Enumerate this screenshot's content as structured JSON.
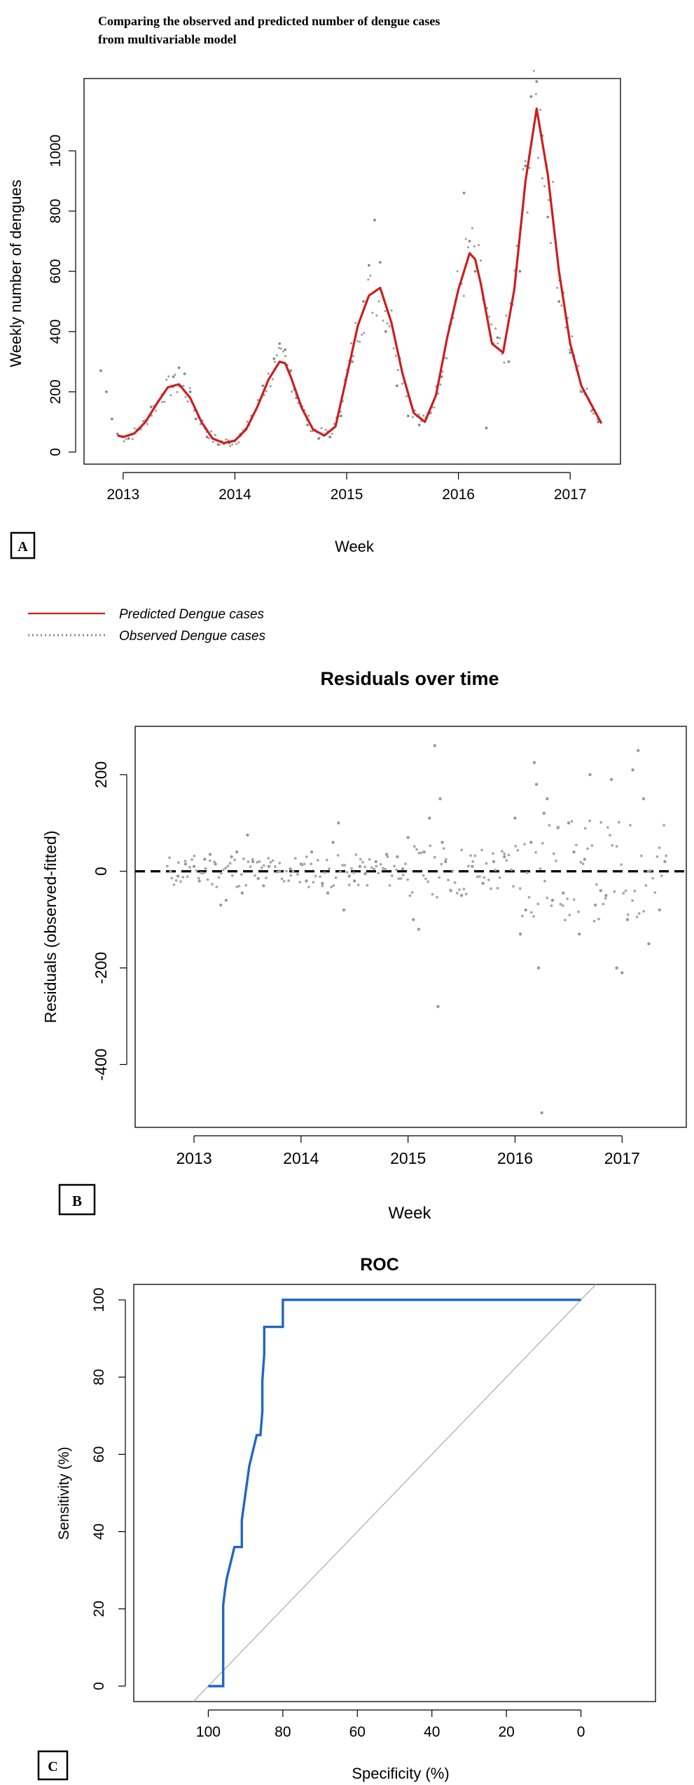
{
  "chart_data": [
    {
      "panel": "A",
      "type": "line",
      "title": "Comparing the observed and predicted number of dengue cases\nfrom multivariable model",
      "xlabel": "Week",
      "ylabel": "Weekly number of dengues",
      "xlim": [
        2012.65,
        2017.45
      ],
      "ylim": [
        -40,
        1240
      ],
      "x_ticks": [
        2013,
        2014,
        2015,
        2016,
        2017
      ],
      "y_ticks": [
        0,
        200,
        400,
        600,
        800,
        1000
      ],
      "legend": {
        "placement": "bottom-left",
        "entries": [
          "Predicted Dengue cases",
          "Observed Dengue cases"
        ]
      },
      "colors": {
        "predicted": "#cc1f1f",
        "observed": "#888888"
      },
      "series": [
        {
          "name": "Predicted Dengue cases",
          "style": "line",
          "x": [
            2012.95,
            2013.0,
            2013.1,
            2013.2,
            2013.3,
            2013.4,
            2013.5,
            2013.6,
            2013.7,
            2013.8,
            2013.9,
            2014.0,
            2014.1,
            2014.2,
            2014.3,
            2014.4,
            2014.45,
            2014.5,
            2014.6,
            2014.7,
            2014.8,
            2014.9,
            2015.0,
            2015.1,
            2015.2,
            2015.3,
            2015.4,
            2015.5,
            2015.6,
            2015.7,
            2015.8,
            2015.9,
            2016.0,
            2016.1,
            2016.15,
            2016.2,
            2016.3,
            2016.4,
            2016.5,
            2016.6,
            2016.7,
            2016.8,
            2016.9,
            2017.0,
            2017.1,
            2017.2,
            2017.28
          ],
          "y": [
            55,
            50,
            62,
            100,
            160,
            215,
            225,
            180,
            100,
            45,
            30,
            38,
            75,
            150,
            240,
            300,
            295,
            250,
            145,
            75,
            55,
            85,
            250,
            420,
            520,
            545,
            430,
            260,
            130,
            100,
            190,
            380,
            540,
            660,
            640,
            560,
            360,
            330,
            540,
            900,
            1140,
            920,
            600,
            360,
            220,
            150,
            95
          ]
        },
        {
          "name": "Observed Dengue cases",
          "style": "dotted",
          "x": [
            2012.8,
            2012.85,
            2012.9,
            2012.95,
            2013.05,
            2013.15,
            2013.25,
            2013.35,
            2013.45,
            2013.5,
            2013.55,
            2013.6,
            2013.65,
            2013.75,
            2013.85,
            2013.95,
            2014.05,
            2014.15,
            2014.25,
            2014.35,
            2014.4,
            2014.45,
            2014.5,
            2014.55,
            2014.65,
            2014.75,
            2014.85,
            2014.95,
            2015.05,
            2015.15,
            2015.2,
            2015.25,
            2015.3,
            2015.35,
            2015.45,
            2015.55,
            2015.65,
            2015.75,
            2015.85,
            2015.95,
            2016.05,
            2016.1,
            2016.15,
            2016.25,
            2016.35,
            2016.45,
            2016.55,
            2016.6,
            2016.65,
            2016.7,
            2016.75,
            2016.8,
            2016.9,
            2017.0,
            2017.1,
            2017.2,
            2017.25
          ],
          "y": [
            270,
            200,
            110,
            60,
            45,
            80,
            150,
            190,
            250,
            280,
            260,
            200,
            110,
            50,
            25,
            30,
            60,
            120,
            220,
            310,
            360,
            340,
            270,
            180,
            90,
            45,
            50,
            120,
            300,
            500,
            620,
            770,
            630,
            400,
            220,
            120,
            90,
            130,
            250,
            460,
            860,
            700,
            600,
            80,
            380,
            300,
            600,
            950,
            1180,
            1230,
            1050,
            780,
            500,
            330,
            200,
            140,
            100
          ]
        }
      ]
    },
    {
      "panel": "B",
      "type": "scatter",
      "title": "Residuals over time",
      "xlabel": "Week",
      "ylabel": "Residuals (observed-fitted)",
      "xlim": [
        2012.45,
        2017.6
      ],
      "ylim": [
        -530,
        300
      ],
      "x_ticks": [
        2013,
        2014,
        2015,
        2016,
        2017
      ],
      "y_ticks": [
        -400,
        -200,
        0,
        200
      ],
      "reference_line": {
        "y": 0,
        "style": "dashed"
      },
      "colors": {
        "points": "#999999",
        "reference": "#000000"
      },
      "series": [
        {
          "name": "",
          "x": [
            2012.78,
            2012.85,
            2012.92,
            2013.0,
            2013.05,
            2013.1,
            2013.15,
            2013.2,
            2013.25,
            2013.3,
            2013.35,
            2013.4,
            2013.45,
            2013.5,
            2013.55,
            2013.6,
            2013.65,
            2013.7,
            2013.8,
            2013.9,
            2014.0,
            2014.05,
            2014.1,
            2014.2,
            2014.25,
            2014.3,
            2014.35,
            2014.4,
            2014.45,
            2014.5,
            2014.55,
            2014.6,
            2014.7,
            2014.8,
            2014.9,
            2014.95,
            2015.0,
            2015.05,
            2015.1,
            2015.15,
            2015.2,
            2015.25,
            2015.28,
            2015.3,
            2015.32,
            2015.35,
            2015.4,
            2015.5,
            2015.6,
            2015.7,
            2015.8,
            2015.9,
            2016.0,
            2016.05,
            2016.1,
            2016.15,
            2016.18,
            2016.2,
            2016.22,
            2016.25,
            2016.27,
            2016.3,
            2016.35,
            2016.4,
            2016.45,
            2016.5,
            2016.55,
            2016.6,
            2016.65,
            2016.7,
            2016.75,
            2016.8,
            2016.85,
            2016.9,
            2016.95,
            2017.0,
            2017.05,
            2017.1,
            2017.15,
            2017.2,
            2017.25,
            2017.35,
            2017.4
          ],
          "y": [
            0,
            -10,
            15,
            10,
            -20,
            25,
            35,
            15,
            -70,
            -60,
            30,
            40,
            -45,
            75,
            20,
            -15,
            -30,
            10,
            0,
            5,
            15,
            -20,
            40,
            -25,
            -45,
            60,
            100,
            -80,
            -10,
            -20,
            10,
            -5,
            20,
            35,
            30,
            5,
            70,
            -100,
            -120,
            40,
            110,
            260,
            -280,
            150,
            60,
            20,
            -40,
            -50,
            10,
            -25,
            20,
            30,
            110,
            -130,
            -80,
            60,
            225,
            180,
            -200,
            -500,
            120,
            150,
            -60,
            90,
            -45,
            100,
            40,
            -130,
            25,
            200,
            -70,
            -40,
            -50,
            190,
            -200,
            -210,
            -100,
            210,
            250,
            150,
            -150,
            -80,
            20
          ]
        }
      ]
    },
    {
      "panel": "C",
      "type": "line",
      "title": "ROC",
      "xlabel": "Specificity (%)",
      "ylabel": "Sensitivity (%)",
      "x_reversed": true,
      "xlim": [
        120,
        -20
      ],
      "ylim": [
        -4,
        104
      ],
      "x_ticks": [
        100,
        80,
        60,
        40,
        20,
        0
      ],
      "y_ticks": [
        0,
        20,
        40,
        60,
        80,
        100
      ],
      "diagonal": {
        "from": [
          100,
          0
        ],
        "to": [
          0,
          100
        ]
      },
      "colors": {
        "curve": "#2166c4",
        "diagonal": "#b0b0b0"
      },
      "series": [
        {
          "name": "",
          "x": [
            100,
            96,
            96,
            95.5,
            95,
            94,
            93,
            93,
            91,
            91,
            90,
            89,
            88,
            87,
            86,
            85.5,
            85.5,
            85,
            85,
            80,
            80,
            0
          ],
          "y": [
            0,
            0,
            21,
            25,
            28,
            32,
            36,
            36,
            36,
            43,
            50,
            57,
            61,
            65,
            65,
            71,
            79,
            86,
            93,
            93,
            100,
            100
          ]
        }
      ]
    }
  ],
  "panel_labels": [
    "A",
    "B",
    "C"
  ]
}
